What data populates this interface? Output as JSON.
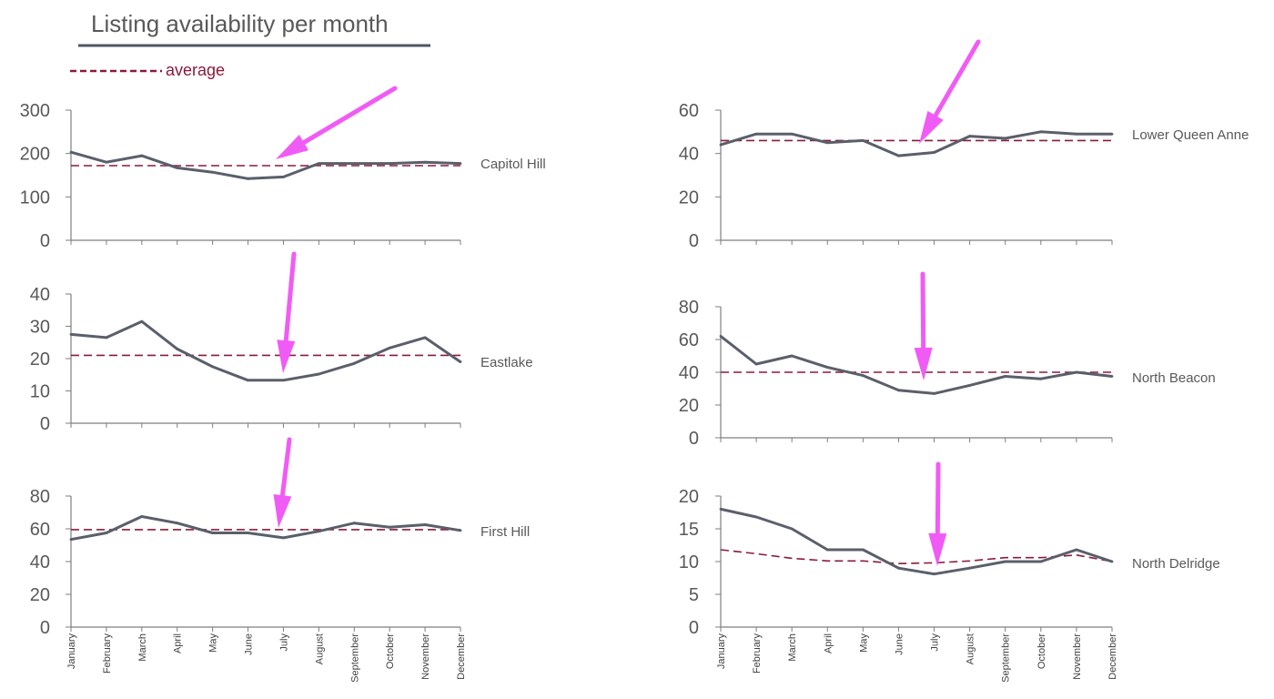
{
  "title": "Listing availability per month",
  "legend": {
    "label": "average",
    "color": "#8B1A3A"
  },
  "colors": {
    "series": "#5A5F6B",
    "average": "#8B1A3A",
    "arrow": "#F15BF5",
    "axis": "#7F7F7F"
  },
  "months": [
    "January",
    "February",
    "March",
    "April",
    "May",
    "June",
    "July",
    "August",
    "September",
    "October",
    "November",
    "December"
  ],
  "chart_data": [
    {
      "type": "line",
      "name": "Capitol Hill",
      "ylim": [
        0,
        300
      ],
      "yticks": [
        0,
        100,
        200,
        300
      ],
      "values": [
        203,
        180,
        195,
        167,
        157,
        142,
        146,
        177,
        177,
        177,
        180,
        177
      ],
      "average": [
        172,
        172,
        172,
        172,
        172,
        172,
        172,
        172,
        172,
        172,
        172,
        172
      ]
    },
    {
      "type": "line",
      "name": "Eastlake",
      "ylim": [
        0,
        40
      ],
      "yticks": [
        0,
        10,
        20,
        30,
        40
      ],
      "values": [
        27.5,
        26.5,
        31.5,
        23,
        17.5,
        13.3,
        13.3,
        15.2,
        18.5,
        23.3,
        26.5,
        19
      ],
      "average": [
        21,
        21,
        21,
        21,
        21,
        21,
        21,
        21,
        21,
        21,
        21,
        21
      ]
    },
    {
      "type": "line",
      "name": "First Hill",
      "ylim": [
        0,
        80
      ],
      "yticks": [
        0,
        20,
        40,
        60,
        80
      ],
      "values": [
        53.5,
        57.5,
        67.5,
        63.5,
        57.5,
        57.5,
        54.5,
        58.5,
        63.5,
        61,
        62.5,
        59
      ],
      "average": [
        59.5,
        59.5,
        59.5,
        59.5,
        59.5,
        59.5,
        59.5,
        59.5,
        59.5,
        59.5,
        59.5,
        59.5
      ]
    },
    {
      "type": "line",
      "name": "Lower Queen Anne",
      "ylim": [
        0,
        60
      ],
      "yticks": [
        0,
        20,
        40,
        60
      ],
      "values": [
        44,
        49,
        49,
        45,
        46,
        39,
        40.5,
        48,
        47,
        50,
        49,
        49
      ],
      "average": [
        46,
        46,
        46,
        46,
        46,
        46,
        46,
        46,
        46,
        46,
        46,
        46
      ]
    },
    {
      "type": "line",
      "name": "North Beacon",
      "ylim": [
        0,
        80
      ],
      "yticks": [
        0,
        20,
        40,
        60,
        80
      ],
      "values": [
        62,
        45,
        50,
        43,
        38,
        29,
        27,
        32,
        37.5,
        36,
        40,
        37.5
      ],
      "average": [
        40,
        40,
        40,
        40,
        40,
        40,
        40,
        40,
        40,
        40,
        40,
        40
      ]
    },
    {
      "type": "line",
      "name": "North Delridge",
      "ylim": [
        0,
        20
      ],
      "yticks": [
        0,
        5,
        10,
        15,
        20
      ],
      "values": [
        18,
        16.8,
        15,
        11.8,
        11.8,
        9,
        8.1,
        9,
        10,
        10,
        11.8,
        10
      ],
      "average": [
        11.8,
        11.2,
        10.5,
        10.1,
        10.1,
        9.7,
        9.8,
        10.1,
        10.6,
        10.6,
        11,
        10
      ]
    }
  ]
}
